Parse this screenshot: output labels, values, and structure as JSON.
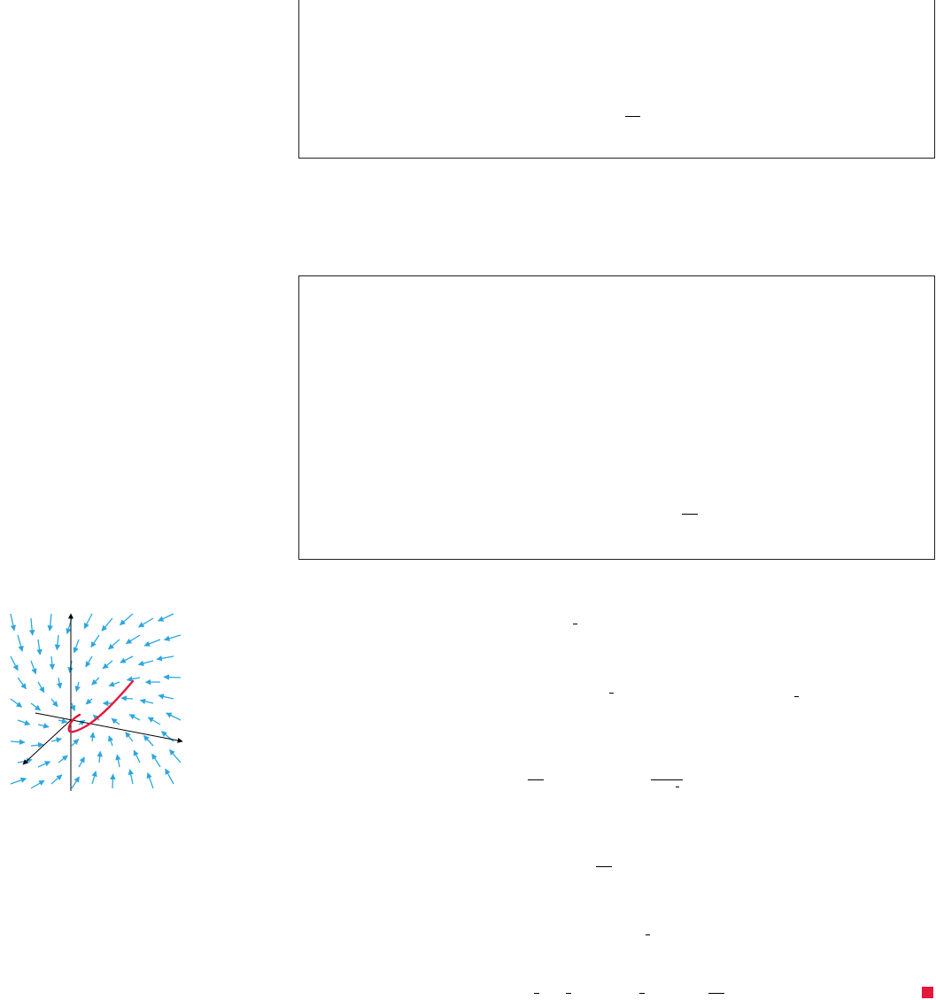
{
  "page": {
    "background": "#ffffff"
  },
  "boxes": {
    "border_color": "#231f20",
    "count": 2
  },
  "figure": {
    "description_icons": [
      "vector-field-arrows",
      "curve"
    ],
    "arrow_color": "#2aa7e0",
    "curve_color": "#e3173e",
    "axis_color": "#000000"
  },
  "end_marker": {
    "color": "#e3173e"
  }
}
